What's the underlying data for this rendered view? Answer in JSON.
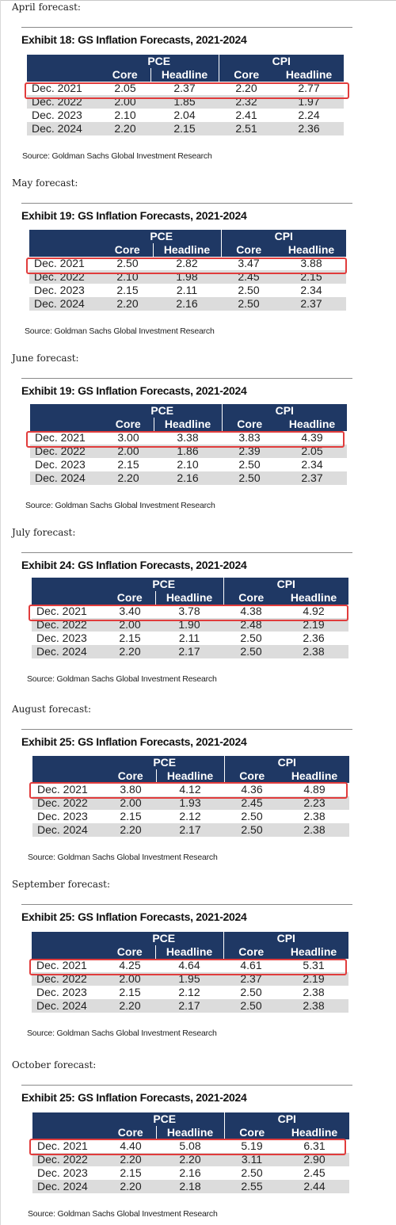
{
  "sections": [
    {
      "label": "April forecast:",
      "title": "Exhibit 18: GS Inflation Forecasts, 2021-2024",
      "groups": [
        "PCE",
        "CPI"
      ],
      "columns": [
        "Core",
        "Headline",
        "Core",
        "Headline"
      ],
      "rows": [
        [
          "Dec. 2021",
          "2.05",
          "2.37",
          "2.20",
          "2.77"
        ],
        [
          "Dec. 2022",
          "2.00",
          "1.85",
          "2.32",
          "1.97"
        ],
        [
          "Dec. 2023",
          "2.10",
          "2.04",
          "2.41",
          "2.24"
        ],
        [
          "Dec. 2024",
          "2.20",
          "2.15",
          "2.51",
          "2.36"
        ]
      ],
      "source": "Source: Goldman Sachs Global Investment Research"
    },
    {
      "label": "May forecast:",
      "title": "Exhibit 19: GS Inflation Forecasts, 2021-2024",
      "groups": [
        "PCE",
        "CPI"
      ],
      "columns": [
        "Core",
        "Headline",
        "Core",
        "Headline"
      ],
      "rows": [
        [
          "Dec. 2021",
          "2.50",
          "2.82",
          "3.47",
          "3.88"
        ],
        [
          "Dec. 2022",
          "2.10",
          "1.98",
          "2.45",
          "2.15"
        ],
        [
          "Dec. 2023",
          "2.15",
          "2.11",
          "2.50",
          "2.34"
        ],
        [
          "Dec. 2024",
          "2.20",
          "2.16",
          "2.50",
          "2.37"
        ]
      ],
      "source": "Source: Goldman Sachs Global Investment Research"
    },
    {
      "label": "June forecast:",
      "title": "Exhibit 19: GS Inflation Forecasts, 2021-2024",
      "groups": [
        "PCE",
        "CPI"
      ],
      "columns": [
        "Core",
        "Headline",
        "Core",
        "Headline"
      ],
      "rows": [
        [
          "Dec. 2021",
          "3.00",
          "3.38",
          "3.83",
          "4.39"
        ],
        [
          "Dec. 2022",
          "2.00",
          "1.86",
          "2.39",
          "2.05"
        ],
        [
          "Dec. 2023",
          "2.15",
          "2.10",
          "2.50",
          "2.34"
        ],
        [
          "Dec. 2024",
          "2.20",
          "2.16",
          "2.50",
          "2.37"
        ]
      ],
      "source": "Source: Goldman Sachs Global Investment Research"
    },
    {
      "label": "July forecast:",
      "title": "Exhibit 24: GS Inflation Forecasts, 2021-2024",
      "groups": [
        "PCE",
        "CPI"
      ],
      "columns": [
        "Core",
        "Headline",
        "Core",
        "Headline"
      ],
      "rows": [
        [
          "Dec. 2021",
          "3.40",
          "3.78",
          "4.38",
          "4.92"
        ],
        [
          "Dec. 2022",
          "2.00",
          "1.90",
          "2.48",
          "2.19"
        ],
        [
          "Dec. 2023",
          "2.15",
          "2.11",
          "2.50",
          "2.36"
        ],
        [
          "Dec. 2024",
          "2.20",
          "2.17",
          "2.50",
          "2.38"
        ]
      ],
      "source": "Source: Goldman Sachs Global Investment Research"
    },
    {
      "label": "August forecast:",
      "title": "Exhibit 25: GS Inflation Forecasts, 2021-2024",
      "groups": [
        "PCE",
        "CPI"
      ],
      "columns": [
        "Core",
        "Headline",
        "Core",
        "Headline"
      ],
      "rows": [
        [
          "Dec. 2021",
          "3.80",
          "4.12",
          "4.36",
          "4.89"
        ],
        [
          "Dec. 2022",
          "2.00",
          "1.93",
          "2.45",
          "2.23"
        ],
        [
          "Dec. 2023",
          "2.15",
          "2.12",
          "2.50",
          "2.38"
        ],
        [
          "Dec. 2024",
          "2.20",
          "2.17",
          "2.50",
          "2.38"
        ]
      ],
      "source": "Source: Goldman Sachs Global Investment Research"
    },
    {
      "label": "September forecast:",
      "title": "Exhibit 25: GS Inflation Forecasts, 2021-2024",
      "groups": [
        "PCE",
        "CPI"
      ],
      "columns": [
        "Core",
        "Headline",
        "Core",
        "Headline"
      ],
      "rows": [
        [
          "Dec. 2021",
          "4.25",
          "4.64",
          "4.61",
          "5.31"
        ],
        [
          "Dec. 2022",
          "2.00",
          "1.95",
          "2.37",
          "2.19"
        ],
        [
          "Dec. 2023",
          "2.15",
          "2.12",
          "2.50",
          "2.38"
        ],
        [
          "Dec. 2024",
          "2.20",
          "2.17",
          "2.50",
          "2.38"
        ]
      ],
      "source": "Source: Goldman Sachs Global Investment Research"
    },
    {
      "label": "October forecast:",
      "title": "Exhibit 25: GS Inflation Forecasts, 2021-2024",
      "groups": [
        "PCE",
        "CPI"
      ],
      "columns": [
        "Core",
        "Headline",
        "Core",
        "Headline"
      ],
      "rows": [
        [
          "Dec. 2021",
          "4.40",
          "5.08",
          "5.19",
          "6.31"
        ],
        [
          "Dec. 2022",
          "2.20",
          "2.20",
          "3.11",
          "2.90"
        ],
        [
          "Dec. 2023",
          "2.15",
          "2.16",
          "2.50",
          "2.45"
        ],
        [
          "Dec. 2024",
          "2.20",
          "2.18",
          "2.55",
          "2.44"
        ]
      ],
      "source": "Source: Goldman Sachs Global Investment Research"
    }
  ],
  "colors": {
    "header_navy": "#1f3864",
    "highlight_red": "#e13c3c",
    "row_shade": "#dcdcdc"
  }
}
